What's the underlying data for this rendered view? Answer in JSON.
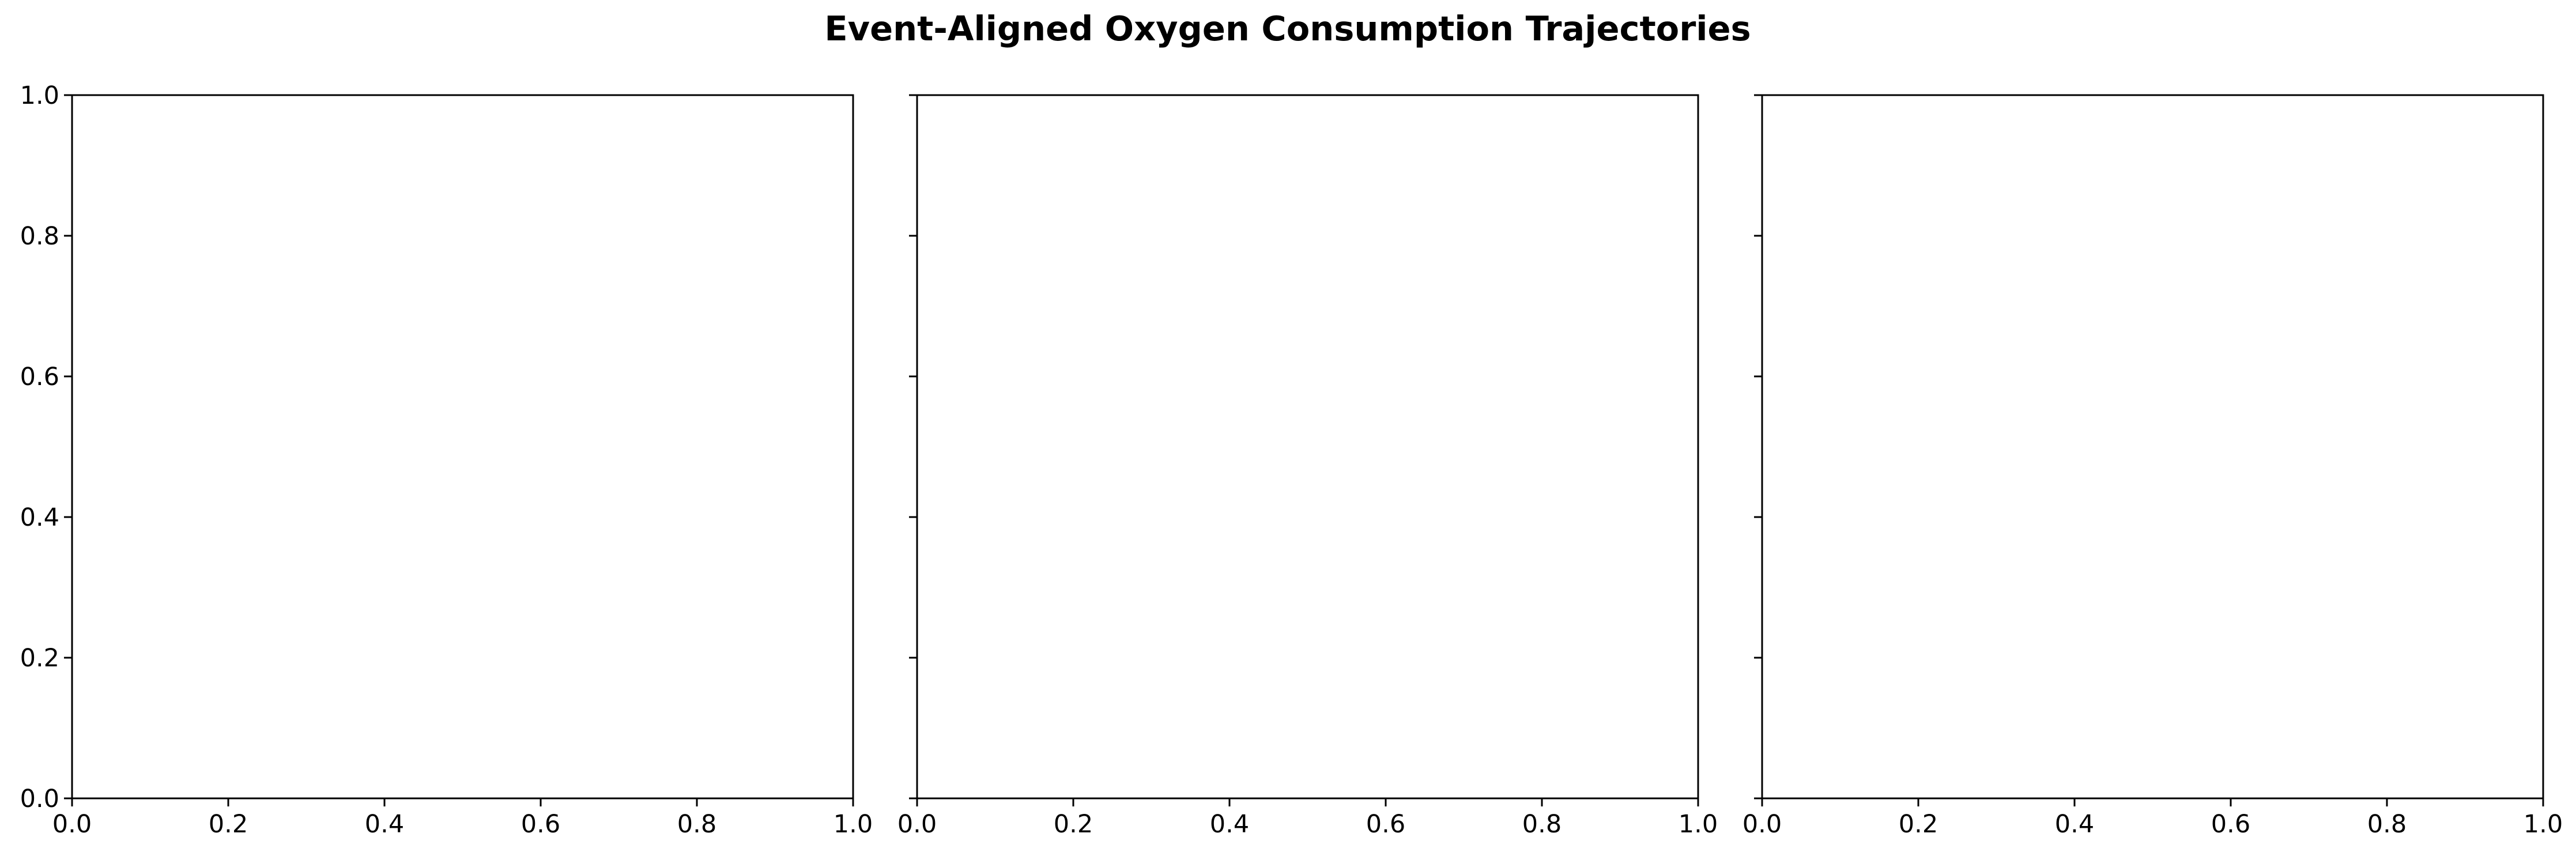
{
  "figure": {
    "title": "Event-Aligned Oxygen Consumption Trajectories"
  },
  "chart_data": [
    {
      "type": "line",
      "title": "",
      "xlabel": "",
      "ylabel": "",
      "xlim": [
        0.0,
        1.0
      ],
      "ylim": [
        0.0,
        1.0
      ],
      "xticks": [
        "0.0",
        "0.2",
        "0.4",
        "0.6",
        "0.8",
        "1.0"
      ],
      "yticks": [
        "0.0",
        "0.2",
        "0.4",
        "0.6",
        "0.8",
        "1.0"
      ],
      "show_yticklabels": true,
      "grid": false,
      "series": []
    },
    {
      "type": "line",
      "title": "",
      "xlabel": "",
      "ylabel": "",
      "xlim": [
        0.0,
        1.0
      ],
      "ylim": [
        0.0,
        1.0
      ],
      "xticks": [
        "0.0",
        "0.2",
        "0.4",
        "0.6",
        "0.8",
        "1.0"
      ],
      "yticks": [
        "0.0",
        "0.2",
        "0.4",
        "0.6",
        "0.8",
        "1.0"
      ],
      "show_yticklabels": false,
      "grid": false,
      "series": []
    },
    {
      "type": "line",
      "title": "",
      "xlabel": "",
      "ylabel": "",
      "xlim": [
        0.0,
        1.0
      ],
      "ylim": [
        0.0,
        1.0
      ],
      "xticks": [
        "0.0",
        "0.2",
        "0.4",
        "0.6",
        "0.8",
        "1.0"
      ],
      "yticks": [
        "0.0",
        "0.2",
        "0.4",
        "0.6",
        "0.8",
        "1.0"
      ],
      "show_yticklabels": false,
      "grid": false,
      "series": []
    }
  ]
}
